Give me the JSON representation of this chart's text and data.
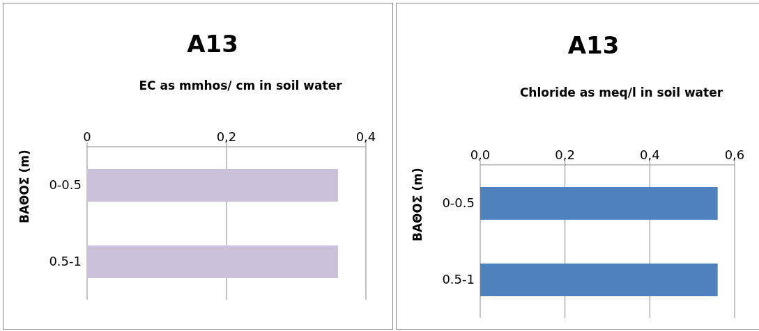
{
  "chart_data": [
    {
      "type": "bar",
      "orientation": "horizontal",
      "title": "A13",
      "xlabel": "EC as mmhos/ cm in soil water",
      "ylabel": "ΒΑΘΟΣ (m)",
      "categories": [
        "0-0.5",
        "0.5-1"
      ],
      "values": [
        0.36,
        0.36
      ],
      "color": "#ccc1da",
      "xlim": [
        0,
        0.4
      ],
      "xticks": [
        0,
        {
          "value": 0.2,
          "label": "0,2"
        },
        {
          "value": 0.4,
          "label": "0,4"
        }
      ],
      "grid": "x"
    },
    {
      "type": "bar",
      "orientation": "horizontal",
      "title": "A13",
      "xlabel": "Chloride as meq/l in soil water",
      "ylabel": "ΒΑΘΟΣ (m)",
      "categories": [
        "0-0.5",
        "0.5-1"
      ],
      "values": [
        0.56,
        0.56
      ],
      "color": "#4f81bd",
      "xlim": [
        0,
        0.6
      ],
      "xticks": [
        {
          "value": 0,
          "label": "0,0"
        },
        {
          "value": 0.2,
          "label": "0,2"
        },
        {
          "value": 0.4,
          "label": "0,4"
        },
        {
          "value": 0.6,
          "label": "0,6"
        }
      ],
      "grid": "x"
    }
  ]
}
